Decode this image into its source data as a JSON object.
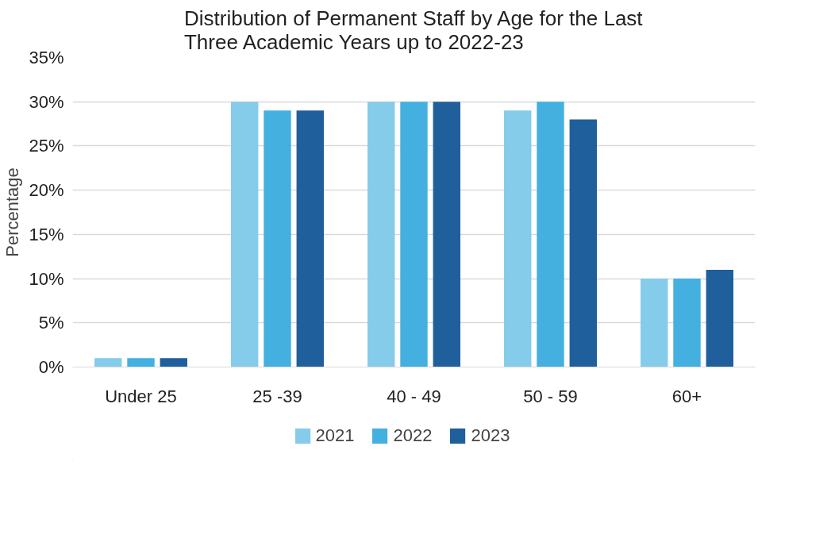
{
  "chart_data": {
    "type": "bar",
    "title": "Distribution of Permanent Staff by Age for the Last\nThree Academic Years up to 2022-23",
    "ylabel": "Percentage",
    "categories": [
      "Under 25",
      "25 -39",
      "40 - 49",
      "50 - 59",
      "60+"
    ],
    "series": [
      {
        "name": "2021",
        "color": "#85cbea",
        "values": [
          1,
          30,
          30,
          29,
          10
        ]
      },
      {
        "name": "2022",
        "color": "#43b0e0",
        "values": [
          1,
          29,
          30,
          30,
          10
        ]
      },
      {
        "name": "2023",
        "color": "#1f5f9b",
        "values": [
          1,
          29,
          30,
          28,
          11
        ]
      }
    ],
    "ylim": [
      0,
      35
    ],
    "yticks": [
      {
        "value": 0,
        "label": "0%"
      },
      {
        "value": 5,
        "label": "5%"
      },
      {
        "value": 10,
        "label": "10%"
      },
      {
        "value": 15,
        "label": "15%"
      },
      {
        "value": 20,
        "label": "20%"
      },
      {
        "value": 25,
        "label": "25%"
      },
      {
        "value": 30,
        "label": "30%"
      },
      {
        "value": 35,
        "label": "35%"
      }
    ],
    "grid": "y",
    "legend": "bottom"
  }
}
